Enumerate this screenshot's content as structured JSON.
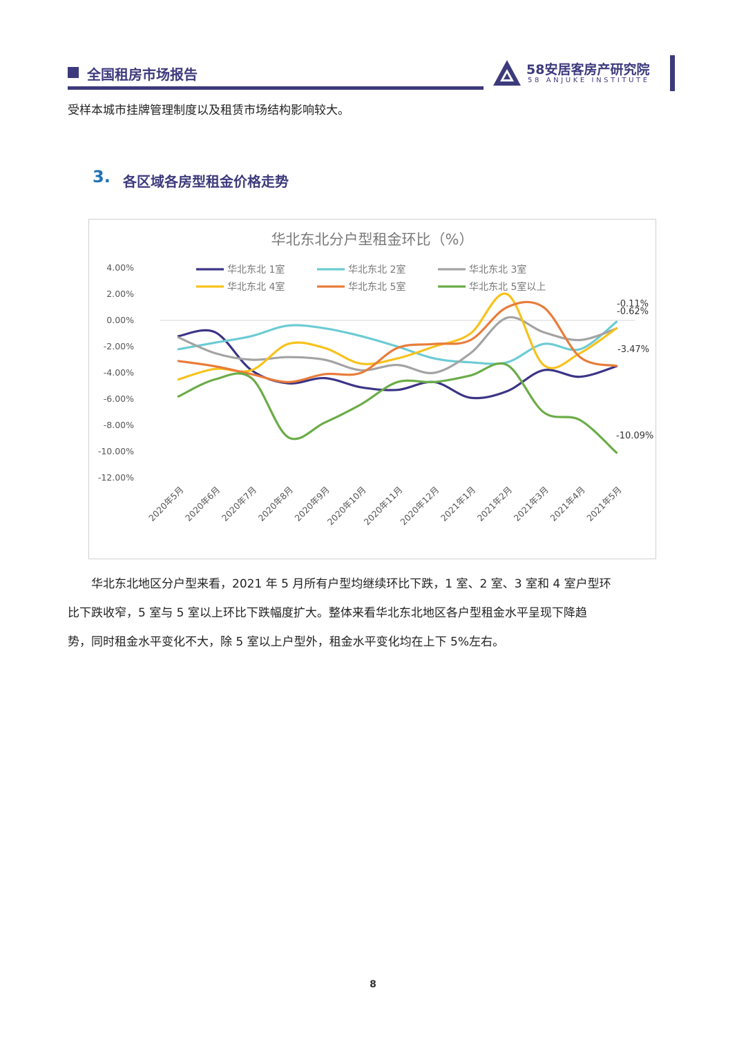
{
  "header": {
    "report_title": "全国租房市场报告",
    "logo_name": "58安居客房产研究院",
    "logo_sub": "58 ANJUKE INSTITUTE"
  },
  "intro_text": "受样本城市挂牌管理制度以及租赁市场结构影响较大。",
  "section": {
    "number": "3.",
    "title": "各区域各房型租金价格走势"
  },
  "colors": {
    "brand": "#3d3a7c",
    "section_number": "#1f73b7",
    "series": [
      "#3b3486",
      "#6ccbd3",
      "#a3a3a3",
      "#f7c21b",
      "#e87c3a",
      "#6aac47"
    ]
  },
  "chart_data": {
    "type": "line",
    "title": "华北东北分户型租金环比（%）",
    "categories": [
      "2020年5月",
      "2020年6月",
      "2020年7月",
      "2020年8月",
      "2020年9月",
      "2020年10月",
      "2020年11月",
      "2020年12月",
      "2021年1月",
      "2021年2月",
      "2021年3月",
      "2021年4月",
      "2021年5月"
    ],
    "yticks": [
      "4.00%",
      "2.00%",
      "0.00%",
      "-2.00%",
      "-4.00%",
      "-6.00%",
      "-8.00%",
      "-10.00%",
      "-12.00%"
    ],
    "ylim": [
      -12,
      4
    ],
    "grid": false,
    "legend_position": "top",
    "series": [
      {
        "name": "华北东北 1室",
        "values": [
          -1.2,
          -0.9,
          -3.8,
          -4.8,
          -4.4,
          -5.1,
          -5.3,
          -4.7,
          -5.9,
          -5.4,
          -3.8,
          -4.3,
          -3.5
        ]
      },
      {
        "name": "华北东北 2室",
        "values": [
          -2.2,
          -1.7,
          -1.2,
          -0.4,
          -0.6,
          -1.2,
          -2.0,
          -2.9,
          -3.2,
          -3.2,
          -1.8,
          -2.2,
          -0.11
        ]
      },
      {
        "name": "华北东北 3室",
        "values": [
          -1.3,
          -2.5,
          -3.0,
          -2.8,
          -3.0,
          -3.8,
          -3.4,
          -4.0,
          -2.5,
          0.2,
          -0.9,
          -1.5,
          -0.62
        ]
      },
      {
        "name": "华北东北 4室",
        "values": [
          -4.5,
          -3.7,
          -3.8,
          -1.8,
          -2.1,
          -3.3,
          -2.9,
          -2.0,
          -1.0,
          2.0,
          -3.4,
          -2.5,
          -0.6
        ]
      },
      {
        "name": "华北东北 5室",
        "values": [
          -3.1,
          -3.5,
          -4.1,
          -4.7,
          -4.1,
          -4.0,
          -2.1,
          -1.8,
          -1.5,
          1.0,
          1.0,
          -2.8,
          -3.47
        ]
      },
      {
        "name": "华北东北 5室以上",
        "values": [
          -5.8,
          -4.5,
          -4.4,
          -8.9,
          -7.8,
          -6.4,
          -4.7,
          -4.7,
          -4.2,
          -3.4,
          -7.0,
          -7.6,
          -10.09
        ]
      }
    ],
    "annotations": [
      "-0.11%",
      "-0.62%",
      "-3.47%",
      "-10.09%"
    ]
  },
  "paragraph": [
    "华北东北地区分户型来看，2021 年 5 月所有户型均继续环比下跌，1 室、2 室、3 室和 4 室户型环",
    "比下跌收窄，5 室与 5 室以上环比下跌幅度扩大。整体来看华北东北地区各户型租金水平呈现下降趋",
    "势，同时租金水平变化不大，除 5 室以上户型外，租金水平变化均在上下 5%左右。"
  ],
  "page_number": "8"
}
